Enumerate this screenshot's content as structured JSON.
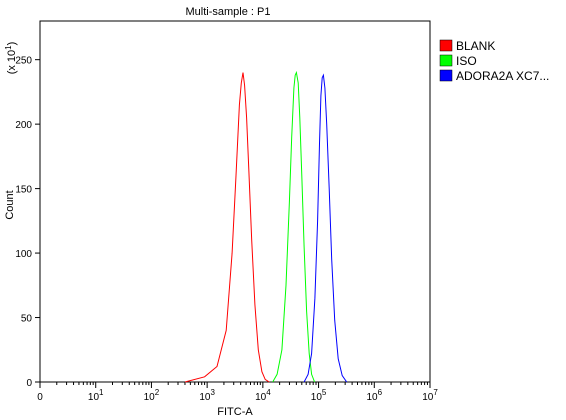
{
  "chart_data": {
    "type": "line",
    "title": "Multi-sample : P1",
    "xlabel": "FITC-A",
    "ylabel": "Count",
    "y_multiplier_label": "(x 10",
    "y_multiplier_exp": "1",
    "y_multiplier_close": ")",
    "x_scale": "log",
    "xlim": [
      1,
      10000000
    ],
    "ylim": [
      0,
      280
    ],
    "grid": false,
    "legend_position": "top-right",
    "y_ticks": [
      0,
      50,
      100,
      150,
      200,
      250
    ],
    "x_ticks": [
      {
        "value": 1,
        "base": "0",
        "exp": ""
      },
      {
        "value": 10,
        "base": "10",
        "exp": "1"
      },
      {
        "value": 100,
        "base": "10",
        "exp": "2"
      },
      {
        "value": 1000,
        "base": "10",
        "exp": "3"
      },
      {
        "value": 10000,
        "base": "10",
        "exp": "4"
      },
      {
        "value": 100000,
        "base": "10",
        "exp": "5"
      },
      {
        "value": 1000000,
        "base": "10",
        "exp": "6"
      },
      {
        "value": 10000000,
        "base": "10",
        "exp": "7"
      }
    ],
    "series": [
      {
        "name": "BLANK",
        "color": "#ff0000",
        "x": [
          400,
          900,
          1500,
          2200,
          2800,
          3300,
          3800,
          4100,
          4400,
          4700,
          5100,
          5600,
          6300,
          7200,
          8300,
          9600,
          11000,
          13000
        ],
        "y": [
          0,
          4,
          12,
          40,
          100,
          160,
          215,
          232,
          240,
          230,
          205,
          165,
          110,
          60,
          25,
          8,
          2,
          0
        ]
      },
      {
        "name": "ISO",
        "color": "#00ff00",
        "x": [
          15000,
          18000,
          22000,
          26000,
          30000,
          33000,
          36000,
          38000,
          40000,
          43000,
          46000,
          50000,
          55000,
          61000,
          68000,
          75000,
          85000
        ],
        "y": [
          0,
          6,
          25,
          75,
          140,
          190,
          228,
          238,
          240,
          232,
          205,
          160,
          105,
          55,
          22,
          6,
          0
        ]
      },
      {
        "name": "ADORA2A XC7...",
        "color": "#0000ff",
        "x": [
          55000,
          65000,
          75000,
          86000,
          96000,
          104000,
          110000,
          116000,
          122000,
          130000,
          140000,
          155000,
          172000,
          195000,
          225000,
          265000,
          320000
        ],
        "y": [
          0,
          6,
          22,
          65,
          125,
          185,
          222,
          236,
          238,
          228,
          200,
          150,
          95,
          48,
          18,
          5,
          0
        ]
      }
    ]
  }
}
